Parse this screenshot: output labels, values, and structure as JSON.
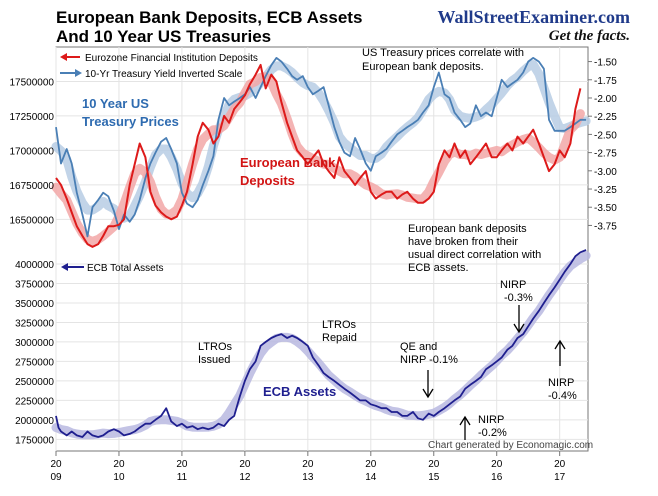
{
  "header": {
    "title_line1": "European Bank Deposits, ECB Assets",
    "title_line2": "And 10 Year US Treasuries",
    "brand": "WallStreetExaminer.com",
    "tagline": "Get the facts."
  },
  "colors": {
    "deposits": "#dd1a1a",
    "deposits_trend": "#f2a7a7",
    "yield": "#4a7fb5",
    "yield_trend": "#b7cde4",
    "ecb": "#1f1f8f",
    "ecb_trend": "#b9b9e0",
    "title": "#111111",
    "brand": "#1f3a8a",
    "label_blue": "#2e6bb0",
    "label_red": "#d21414"
  },
  "chart_data": [
    {
      "type": "line",
      "legend": [
        {
          "name": "Eurozone Financial Institution Deposits",
          "icon": "arrow-left"
        },
        {
          "name": "10-Yr Treasury Yield Inverted Scale",
          "icon": "arrow-right"
        }
      ],
      "y_left_ticks": [
        "16500000",
        "16750000",
        "17000000",
        "17250000",
        "17500000"
      ],
      "y_left_range": [
        16350000,
        17750000
      ],
      "y_right_ticks": [
        "-1.50",
        "-1.75",
        "-2.00",
        "-2.25",
        "-2.50",
        "-2.75",
        "-3.00",
        "-3.25",
        "-3.50",
        "-3.75"
      ],
      "y_right_range": [
        -3.95,
        -1.3
      ],
      "x_range": [
        2009.0,
        2017.45
      ],
      "series": [
        {
          "name": "Eurozone Financial Institution Deposits",
          "axis": "left",
          "x": [
            2009.0,
            2009.08,
            2009.17,
            2009.25,
            2009.33,
            2009.42,
            2009.5,
            2009.58,
            2009.67,
            2009.75,
            2009.83,
            2009.92,
            2010.0,
            2010.08,
            2010.17,
            2010.25,
            2010.33,
            2010.42,
            2010.5,
            2010.58,
            2010.67,
            2010.75,
            2010.83,
            2010.92,
            2011.0,
            2011.08,
            2011.17,
            2011.25,
            2011.33,
            2011.42,
            2011.5,
            2011.58,
            2011.67,
            2011.75,
            2011.83,
            2011.92,
            2012.0,
            2012.08,
            2012.17,
            2012.25,
            2012.33,
            2012.42,
            2012.5,
            2012.58,
            2012.67,
            2012.75,
            2012.83,
            2012.92,
            2013.0,
            2013.08,
            2013.17,
            2013.25,
            2013.33,
            2013.42,
            2013.5,
            2013.58,
            2013.67,
            2013.75,
            2013.83,
            2013.92,
            2014.0,
            2014.08,
            2014.17,
            2014.25,
            2014.33,
            2014.42,
            2014.5,
            2014.58,
            2014.67,
            2014.75,
            2014.83,
            2014.92,
            2015.0,
            2015.08,
            2015.17,
            2015.25,
            2015.33,
            2015.42,
            2015.5,
            2015.58,
            2015.67,
            2015.75,
            2015.83,
            2015.92,
            2016.0,
            2016.08,
            2016.17,
            2016.25,
            2016.33,
            2016.42,
            2016.5,
            2016.58,
            2016.67,
            2016.75,
            2016.83,
            2016.92,
            2017.0,
            2017.08,
            2017.17,
            2017.25,
            2017.33
          ],
          "values": [
            16800000,
            16750000,
            16650000,
            16550000,
            16450000,
            16380000,
            16320000,
            16300000,
            16320000,
            16380000,
            16450000,
            16450000,
            16460000,
            16500000,
            16750000,
            16900000,
            17050000,
            16950000,
            16700000,
            16600000,
            16550000,
            16520000,
            16500000,
            16520000,
            16600000,
            16700000,
            16900000,
            17100000,
            17200000,
            17150000,
            17050000,
            17100000,
            17250000,
            17200000,
            17300000,
            17350000,
            17400000,
            17480000,
            17550000,
            17620000,
            17450000,
            17550000,
            17500000,
            17350000,
            17200000,
            17100000,
            17000000,
            16950000,
            16900000,
            16950000,
            17000000,
            16900000,
            16850000,
            16800000,
            16950000,
            16850000,
            16800000,
            16750000,
            16800000,
            16850000,
            16700000,
            16650000,
            16680000,
            16700000,
            16700000,
            16650000,
            16680000,
            16700000,
            16650000,
            16620000,
            16620000,
            16650000,
            16700000,
            16900000,
            17000000,
            16950000,
            17050000,
            16950000,
            17000000,
            16900000,
            16950000,
            17000000,
            17050000,
            16950000,
            16950000,
            17000000,
            17050000,
            17000000,
            17100000,
            17050000,
            17100000,
            17150000,
            17050000,
            16950000,
            16850000,
            16900000,
            17000000,
            16950000,
            17050000,
            17300000,
            17450000
          ]
        },
        {
          "name": "10-Yr Treasury Yield Inverted Scale",
          "axis": "right",
          "x": [
            2009.0,
            2009.08,
            2009.17,
            2009.25,
            2009.33,
            2009.42,
            2009.5,
            2009.58,
            2009.67,
            2009.75,
            2009.83,
            2009.92,
            2010.0,
            2010.08,
            2010.17,
            2010.25,
            2010.33,
            2010.42,
            2010.5,
            2010.58,
            2010.67,
            2010.75,
            2010.83,
            2010.92,
            2011.0,
            2011.08,
            2011.17,
            2011.25,
            2011.33,
            2011.42,
            2011.5,
            2011.58,
            2011.67,
            2011.75,
            2011.83,
            2011.92,
            2012.0,
            2012.08,
            2012.17,
            2012.25,
            2012.33,
            2012.42,
            2012.5,
            2012.58,
            2012.67,
            2012.75,
            2012.83,
            2012.92,
            2013.0,
            2013.08,
            2013.17,
            2013.25,
            2013.33,
            2013.42,
            2013.5,
            2013.58,
            2013.67,
            2013.75,
            2013.83,
            2013.92,
            2014.0,
            2014.08,
            2014.17,
            2014.25,
            2014.33,
            2014.42,
            2014.5,
            2014.58,
            2014.67,
            2014.75,
            2014.83,
            2014.92,
            2015.0,
            2015.08,
            2015.17,
            2015.25,
            2015.33,
            2015.42,
            2015.5,
            2015.58,
            2015.67,
            2015.75,
            2015.83,
            2015.92,
            2016.0,
            2016.08,
            2016.17,
            2016.25,
            2016.33,
            2016.42,
            2016.5,
            2016.58,
            2016.67,
            2016.75,
            2016.83,
            2016.92,
            2017.0,
            2017.08,
            2017.17,
            2017.25,
            2017.33,
            2017.42
          ],
          "values": [
            -2.4,
            -2.9,
            -2.7,
            -2.9,
            -3.3,
            -3.6,
            -3.9,
            -3.5,
            -3.4,
            -3.3,
            -3.35,
            -3.55,
            -3.8,
            -3.6,
            -3.7,
            -3.6,
            -3.4,
            -3.1,
            -2.9,
            -2.75,
            -2.6,
            -2.55,
            -2.7,
            -2.9,
            -3.3,
            -3.45,
            -3.5,
            -3.4,
            -3.2,
            -3.0,
            -2.8,
            -2.3,
            -2.0,
            -2.1,
            -2.05,
            -2.0,
            -1.95,
            -1.85,
            -2.0,
            -1.85,
            -1.7,
            -1.55,
            -1.45,
            -1.5,
            -1.6,
            -1.7,
            -1.75,
            -1.7,
            -1.85,
            -1.95,
            -1.9,
            -1.85,
            -2.1,
            -2.4,
            -2.6,
            -2.75,
            -2.8,
            -2.55,
            -2.7,
            -2.9,
            -3.0,
            -2.8,
            -2.75,
            -2.7,
            -2.6,
            -2.5,
            -2.45,
            -2.4,
            -2.35,
            -2.3,
            -2.2,
            -2.1,
            -1.85,
            -1.65,
            -1.95,
            -2.0,
            -2.2,
            -2.3,
            -2.4,
            -2.35,
            -2.1,
            -2.25,
            -2.2,
            -2.25,
            -2.0,
            -1.75,
            -1.85,
            -1.8,
            -1.75,
            -1.65,
            -1.5,
            -1.45,
            -1.5,
            -1.6,
            -2.3,
            -2.45,
            -2.45,
            -2.45,
            -2.4,
            -2.35,
            -2.3,
            -2.3
          ]
        }
      ],
      "annotations": [
        {
          "text_lines": [
            "US Treasury prices correlate with",
            "European bank deposits."
          ]
        },
        {
          "text_lines": [
            "10 Year US",
            "Treasury Prices"
          ]
        },
        {
          "text_lines": [
            "European Bank",
            "Deposits"
          ]
        }
      ],
      "grid": true
    },
    {
      "type": "line",
      "legend": [
        {
          "name": "ECB Total Assets",
          "icon": "arrow-left"
        }
      ],
      "y_ticks": [
        "1750000",
        "2000000",
        "2250000",
        "2500000",
        "2750000",
        "3000000",
        "3250000",
        "3500000",
        "3750000",
        "4000000"
      ],
      "y_range": [
        1600000,
        4180000
      ],
      "x_ticks": [
        {
          "top": "20",
          "bottom": "09",
          "x": 2009
        },
        {
          "top": "20",
          "bottom": "10",
          "x": 2010
        },
        {
          "top": "20",
          "bottom": "11",
          "x": 2011
        },
        {
          "top": "20",
          "bottom": "12",
          "x": 2012
        },
        {
          "top": "20",
          "bottom": "13",
          "x": 2013
        },
        {
          "top": "20",
          "bottom": "14",
          "x": 2014
        },
        {
          "top": "20",
          "bottom": "15",
          "x": 2015
        },
        {
          "top": "20",
          "bottom": "16",
          "x": 2016
        },
        {
          "top": "20",
          "bottom": "17",
          "x": 2017
        }
      ],
      "x_range": [
        2009.0,
        2017.45
      ],
      "series": [
        {
          "name": "ECB Total Assets",
          "x": [
            2009.0,
            2009.04,
            2009.08,
            2009.17,
            2009.25,
            2009.33,
            2009.42,
            2009.5,
            2009.58,
            2009.67,
            2009.75,
            2009.83,
            2009.92,
            2010.0,
            2010.08,
            2010.17,
            2010.25,
            2010.33,
            2010.42,
            2010.5,
            2010.58,
            2010.67,
            2010.75,
            2010.83,
            2010.92,
            2011.0,
            2011.08,
            2011.17,
            2011.25,
            2011.33,
            2011.42,
            2011.5,
            2011.58,
            2011.67,
            2011.75,
            2011.83,
            2011.92,
            2012.0,
            2012.08,
            2012.17,
            2012.25,
            2012.33,
            2012.42,
            2012.5,
            2012.58,
            2012.67,
            2012.75,
            2012.83,
            2012.92,
            2013.0,
            2013.08,
            2013.17,
            2013.25,
            2013.33,
            2013.42,
            2013.5,
            2013.58,
            2013.67,
            2013.75,
            2013.83,
            2013.92,
            2014.0,
            2014.08,
            2014.17,
            2014.25,
            2014.33,
            2014.42,
            2014.5,
            2014.58,
            2014.67,
            2014.75,
            2014.83,
            2014.92,
            2015.0,
            2015.08,
            2015.17,
            2015.25,
            2015.33,
            2015.42,
            2015.5,
            2015.58,
            2015.67,
            2015.75,
            2015.83,
            2015.92,
            2016.0,
            2016.08,
            2016.17,
            2016.25,
            2016.33,
            2016.42,
            2016.5,
            2016.58,
            2016.67,
            2016.75,
            2016.83,
            2016.92,
            2017.0,
            2017.08,
            2017.17,
            2017.25,
            2017.33,
            2017.42
          ],
          "values": [
            2050000,
            1900000,
            1850000,
            1800000,
            1850000,
            1800000,
            1780000,
            1850000,
            1800000,
            1780000,
            1800000,
            1850000,
            1880000,
            1850000,
            1800000,
            1820000,
            1850000,
            1900000,
            1950000,
            1950000,
            2000000,
            2050000,
            2150000,
            1980000,
            1920000,
            1950000,
            1900000,
            1920000,
            1880000,
            1900000,
            1880000,
            1900000,
            1950000,
            1920000,
            2000000,
            2050000,
            2300000,
            2500000,
            2650000,
            2750000,
            2950000,
            3000000,
            3050000,
            3080000,
            3100000,
            3050000,
            3080000,
            3050000,
            3000000,
            2950000,
            2800000,
            2700000,
            2600000,
            2550000,
            2500000,
            2450000,
            2400000,
            2350000,
            2300000,
            2250000,
            2250000,
            2200000,
            2180000,
            2150000,
            2150000,
            2100000,
            2100000,
            2050000,
            2050000,
            2100000,
            2020000,
            2000000,
            2080000,
            2050000,
            2100000,
            2150000,
            2200000,
            2250000,
            2300000,
            2400000,
            2450000,
            2500000,
            2550000,
            2650000,
            2700000,
            2750000,
            2800000,
            2900000,
            2950000,
            3050000,
            3100000,
            3200000,
            3300000,
            3400000,
            3500000,
            3600000,
            3700000,
            3800000,
            3900000,
            4000000,
            4100000,
            4150000,
            4180000
          ]
        }
      ],
      "annotations": [
        {
          "text_lines": [
            "LTROs",
            "Issued"
          ]
        },
        {
          "text_lines": [
            "LTROs",
            "Repaid"
          ]
        },
        {
          "text_lines": [
            "ECB Assets"
          ]
        },
        {
          "text_lines": [
            "QE and",
            "NIRP -0.1%"
          ]
        },
        {
          "text_lines": [
            "NIRP",
            "-0.2%"
          ]
        },
        {
          "text_lines": [
            "NIRP",
            "-0.3%"
          ]
        },
        {
          "text_lines": [
            "NIRP",
            "-0.4%"
          ]
        },
        {
          "text_lines": [
            "European bank deposits",
            "have  broken from their",
            "usual direct correlation with",
            "ECB assets."
          ]
        }
      ],
      "credit": "Chart generated by Economagic.com",
      "grid": true
    }
  ]
}
